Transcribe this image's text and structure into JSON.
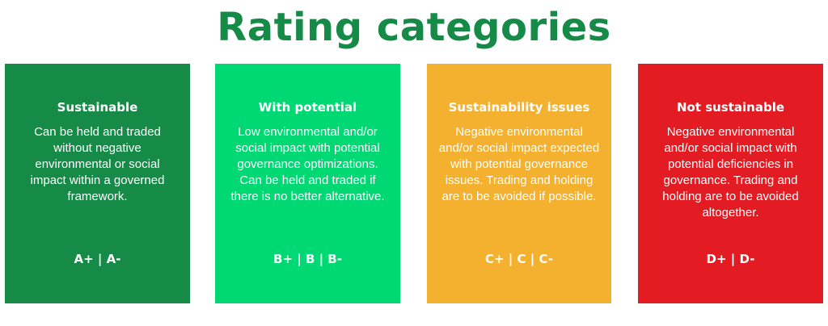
{
  "title": "Rating categories",
  "colors": {
    "title": "#168a47",
    "sustainable": "#168a47",
    "potential": "#00d973",
    "issues": "#f4b02f",
    "not_sustainable": "#e31c24",
    "text": "#ffffff"
  },
  "categories": [
    {
      "title": "Sustainable",
      "description": "Can be held and traded without negative environmental or social impact within a governed framework.",
      "grades": "A+ | A-"
    },
    {
      "title": "With potential",
      "description": "Low environmental and/or social impact with potential governance optimizations. Can be held and traded if there is no better alternative.",
      "grades": "B+ | B | B-"
    },
    {
      "title": "Sustainability issues",
      "description": "Negative environmental and/or social impact expected with potential governance issues. Trading and holding are to be avoided if possible.",
      "grades": "C+ | C | C-"
    },
    {
      "title": "Not sustainable",
      "description": "Negative environmental and/or social impact with potential deficiencies in governance. Trading and holding are to be avoided altogether.",
      "grades": "D+ | D-"
    }
  ]
}
